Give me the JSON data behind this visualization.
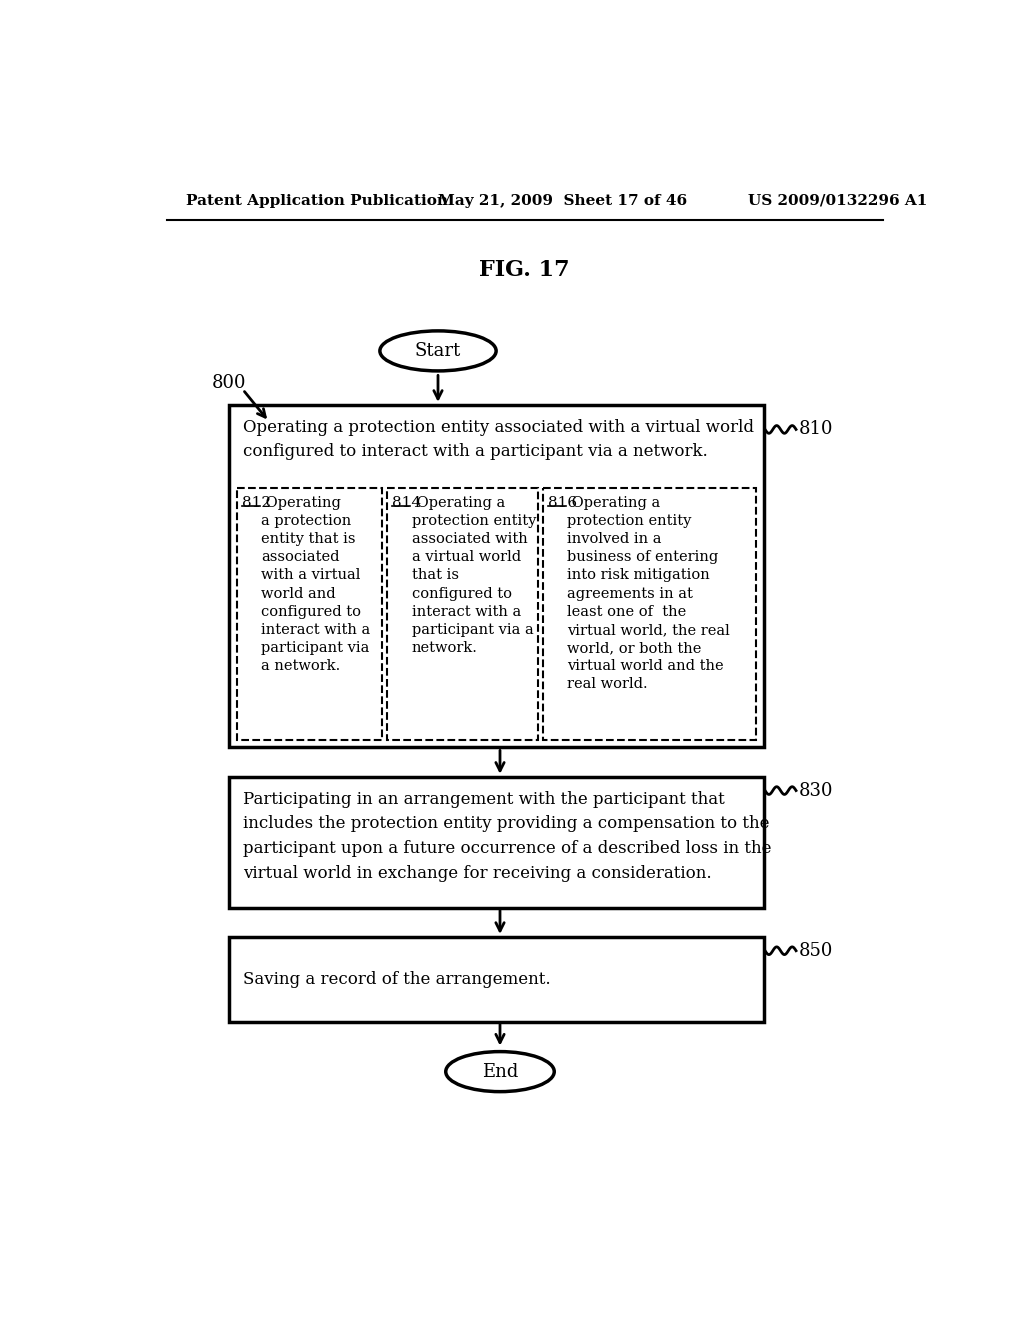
{
  "header_left": "Patent Application Publication",
  "header_center": "May 21, 2009  Sheet 17 of 46",
  "header_right": "US 2009/0132296 A1",
  "fig_title": "FIG. 17",
  "label_800": "800",
  "label_810": "810",
  "label_830": "830",
  "label_850": "850",
  "start_text": "Start",
  "end_text": "End",
  "box810_header": "Operating a protection entity associated with a virtual world\nconfigured to interact with a participant via a network.",
  "box812_label": "812",
  "box812_text": "Operating\na protection\nentity that is\nassociated\nwith a virtual\nworld and\nconfigured to\ninteract with a\nparticipant via\na network.",
  "box814_label": "814",
  "box814_text": "Operating a\nprotection entity\nassociated with\na virtual world\nthat is\nconfigured to\ninteract with a\nparticipant via a\nnetwork.",
  "box816_label": "816",
  "box816_text": "Operating a\nprotection entity\ninvolved in a\nbusiness of entering\ninto risk mitigation\nagreements in at\nleast one of  the\nvirtual world, the real\nworld, or both the\nvirtual world and the\nreal world.",
  "box830_text": "Participating in an arrangement with the participant that\nincludes the protection entity providing a compensation to the\nparticipant upon a future occurrence of a described loss in the\nvirtual world in exchange for receiving a consideration.",
  "box850_text": "Saving a record of the arrangement.",
  "bg_color": "#ffffff",
  "text_color": "#000000",
  "line_color": "#000000"
}
